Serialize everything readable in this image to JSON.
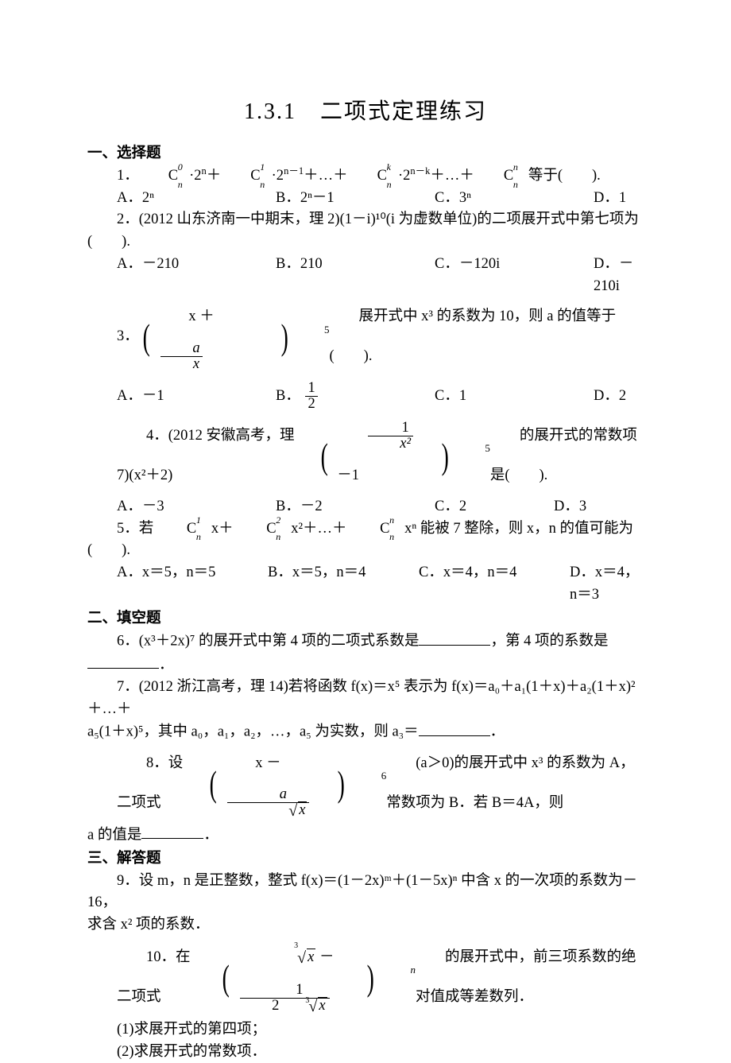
{
  "title": "1.3.1　二项式定理练习",
  "section1": "一、选择题",
  "q1_lead": "1．",
  "q1_body_a": "·2",
  "q1_body_b": "＋",
  "q1_body_c": "·2",
  "q1_body_d": "＋…＋",
  "q1_body_e": "·2",
  "q1_body_f": "＋…＋",
  "q1_body_g": " 等于(　　).",
  "q1A": "A．2ⁿ",
  "q1B": "B．2ⁿ－1",
  "q1C": "C．3ⁿ",
  "q1D": "D．1",
  "q2": "2．(2012 山东济南一中期末，理 2)(1－i)¹⁰(i 为虚数单位)的二项展开式中第七项为(　　).",
  "q2A": "A．－210",
  "q2B": "B．210",
  "q2C": "C．－120i",
  "q2D": "D．－210i",
  "q3_lead": "3．",
  "q3_tail": " 展开式中 x³ 的系数为 10，则 a 的值等于(　　).",
  "q3_x": "x ＋",
  "q3_num": "a",
  "q3_den": "x",
  "q3_exp": "5",
  "q3A": "A．－1",
  "q3Bpre": "B．",
  "q3B_num": "1",
  "q3B_den": "2",
  "q3C": "C．1",
  "q3D": "D．2",
  "q4_lead": "4．(2012 安徽高考，理 7)(x²＋2)",
  "q4_num": "1",
  "q4_den": "x²",
  "q4_mid": "－1",
  "q4_exp": "5",
  "q4_tail": " 的展开式的常数项是(　　).",
  "q4A": "A．－3",
  "q4B": "B．－2",
  "q4C": "C．2",
  "q4D": "D．3",
  "q5_pre": "5．若",
  "q5_a": " x＋",
  "q5_b": " x²＋…＋",
  "q5_c": " xⁿ 能被 7 整除，则 x，n 的值可能为(　　).",
  "q5A": "A．x＝5，n＝5",
  "q5B": "B．x＝5，n＝4",
  "q5C": "C．x＝4，n＝4",
  "q5D": "D．x＝4，n＝3",
  "section2": "二、填空题",
  "q6a": "6．(x³＋2x)⁷ 的展开式中第 4 项的二项式系数是",
  "q6b": "，第 4 项的系数是",
  "q6c": "．",
  "q7a": "7．(2012 浙江高考，理 14)若将函数 f(x)＝x⁵ 表示为 f(x)＝a₀＋a₁(1＋x)＋a₂(1＋x)²＋…＋",
  "q7b": "a₅(1＋x)⁵，其中 a₀，a₁，a₂，…，a₅ 为实数，则 a₃＝",
  "q7c": "．",
  "q8_lead": "8．设二项式",
  "q8_x": "x －",
  "q8_num": "a",
  "q8_denx": "x",
  "q8_exp": "6",
  "q8_tail": "(a＞0)的展开式中 x³ 的系数为 A，常数项为 B．若 B＝4A，则",
  "q8_line2a": "a 的值是",
  "q8_line2b": "．",
  "section3": "三、解答题",
  "q9a": "9．设 m，n 是正整数，整式 f(x)＝(1－2x)ᵐ＋(1－5x)ⁿ 中含 x 的一次项的系数为－16，",
  "q9b": "求含 x² 项的系数．",
  "q10_lead": "10．在二项式",
  "q10_lx": "x",
  "q10_mid": " － ",
  "q10_num": "1",
  "q10_dpre": "2",
  "q10_dx": "x",
  "q10_exp": "n",
  "q10_tail": " 的展开式中，前三项系数的绝对值成等差数列．",
  "q10_1": "(1)求展开式的第四项；",
  "q10_2": "(2)求展开式的常数项．"
}
